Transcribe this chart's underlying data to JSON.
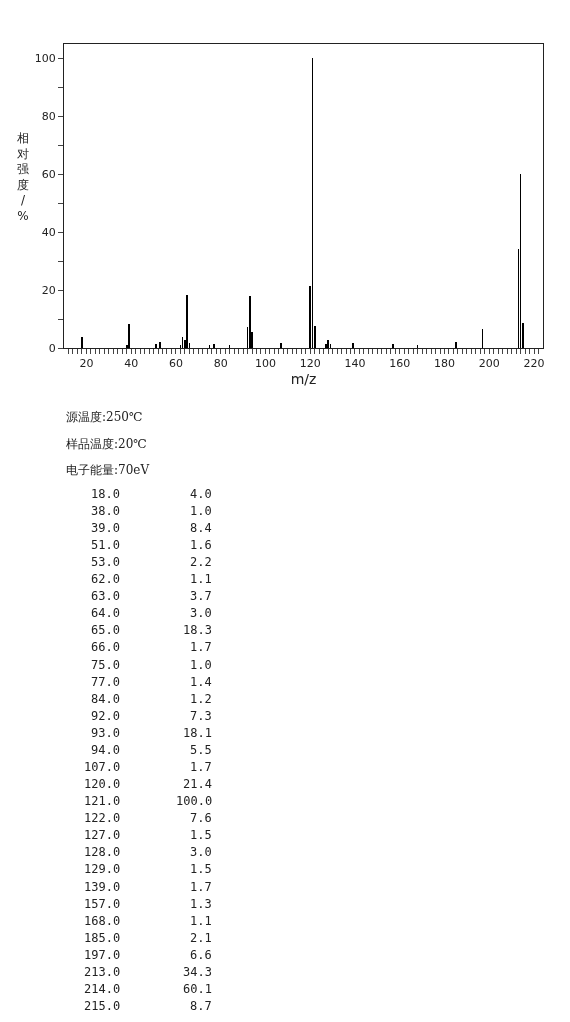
{
  "chart_data": {
    "type": "bar",
    "xlabel": "m/z",
    "ylabel": "相对强度/%",
    "x": [
      18.0,
      38.0,
      39.0,
      51.0,
      53.0,
      62.0,
      63.0,
      64.0,
      65.0,
      66.0,
      75.0,
      77.0,
      84.0,
      92.0,
      93.0,
      94.0,
      107.0,
      120.0,
      121.0,
      122.0,
      127.0,
      128.0,
      129.0,
      139.0,
      157.0,
      168.0,
      185.0,
      197.0,
      213.0,
      214.0,
      215.0
    ],
    "values": [
      4.0,
      1.0,
      8.4,
      1.6,
      2.2,
      1.1,
      3.7,
      3.0,
      18.3,
      1.7,
      1.0,
      1.4,
      1.2,
      7.3,
      18.1,
      5.5,
      1.7,
      21.4,
      100.0,
      7.6,
      1.5,
      3.0,
      1.5,
      1.7,
      1.3,
      1.1,
      2.1,
      6.6,
      34.3,
      60.1,
      8.7
    ],
    "color": "#000000",
    "xlim": [
      10,
      224
    ],
    "ylim": [
      0,
      105
    ],
    "xticks": [
      {
        "value": 12,
        "label": null
      },
      {
        "value": 14,
        "label": null
      },
      {
        "value": 16,
        "label": null
      },
      {
        "value": 18,
        "label": null
      },
      20,
      {
        "value": 22,
        "label": null
      },
      {
        "value": 24,
        "label": null
      },
      {
        "value": 26,
        "label": null
      },
      {
        "value": 28,
        "label": null
      },
      {
        "value": 30,
        "label": null
      },
      {
        "value": 32,
        "label": null
      },
      {
        "value": 34,
        "label": null
      },
      {
        "value": 36,
        "label": null
      },
      {
        "value": 38,
        "label": null
      },
      40,
      {
        "value": 42,
        "label": null
      },
      {
        "value": 44,
        "label": null
      },
      {
        "value": 46,
        "label": null
      },
      {
        "value": 48,
        "label": null
      },
      {
        "value": 50,
        "label": null
      },
      {
        "value": 52,
        "label": null
      },
      {
        "value": 54,
        "label": null
      },
      {
        "value": 56,
        "label": null
      },
      {
        "value": 58,
        "label": null
      },
      60,
      {
        "value": 62,
        "label": null
      },
      {
        "value": 64,
        "label": null
      },
      {
        "value": 66,
        "label": null
      },
      {
        "value": 68,
        "label": null
      },
      {
        "value": 70,
        "label": null
      },
      {
        "value": 72,
        "label": null
      },
      {
        "value": 74,
        "label": null
      },
      {
        "value": 76,
        "label": null
      },
      {
        "value": 78,
        "label": null
      },
      80,
      {
        "value": 82,
        "label": null
      },
      {
        "value": 84,
        "label": null
      },
      {
        "value": 86,
        "label": null
      },
      {
        "value": 88,
        "label": null
      },
      {
        "value": 90,
        "label": null
      },
      {
        "value": 92,
        "label": null
      },
      {
        "value": 94,
        "label": null
      },
      {
        "value": 96,
        "label": null
      },
      {
        "value": 98,
        "label": null
      },
      100,
      {
        "value": 102,
        "label": null
      },
      {
        "value": 104,
        "label": null
      },
      {
        "value": 106,
        "label": null
      },
      {
        "value": 108,
        "label": null
      },
      {
        "value": 110,
        "label": null
      },
      {
        "value": 112,
        "label": null
      },
      {
        "value": 114,
        "label": null
      },
      {
        "value": 116,
        "label": null
      },
      {
        "value": 118,
        "label": null
      },
      120,
      {
        "value": 122,
        "label": null
      },
      {
        "value": 124,
        "label": null
      },
      {
        "value": 126,
        "label": null
      },
      {
        "value": 128,
        "label": null
      },
      {
        "value": 130,
        "label": null
      },
      {
        "value": 132,
        "label": null
      },
      {
        "value": 134,
        "label": null
      },
      {
        "value": 136,
        "label": null
      },
      {
        "value": 138,
        "label": null
      },
      140,
      {
        "value": 142,
        "label": null
      },
      {
        "value": 144,
        "label": null
      },
      {
        "value": 146,
        "label": null
      },
      {
        "value": 148,
        "label": null
      },
      {
        "value": 150,
        "label": null
      },
      {
        "value": 152,
        "label": null
      },
      {
        "value": 154,
        "label": null
      },
      {
        "value": 156,
        "label": null
      },
      {
        "value": 158,
        "label": null
      },
      160,
      {
        "value": 162,
        "label": null
      },
      {
        "value": 164,
        "label": null
      },
      {
        "value": 166,
        "label": null
      },
      {
        "value": 168,
        "label": null
      },
      {
        "value": 170,
        "label": null
      },
      {
        "value": 172,
        "label": null
      },
      {
        "value": 174,
        "label": null
      },
      {
        "value": 176,
        "label": null
      },
      {
        "value": 178,
        "label": null
      },
      180,
      {
        "value": 182,
        "label": null
      },
      {
        "value": 184,
        "label": null
      },
      {
        "value": 186,
        "label": null
      },
      {
        "value": 188,
        "label": null
      },
      {
        "value": 190,
        "label": null
      },
      {
        "value": 192,
        "label": null
      },
      {
        "value": 194,
        "label": null
      },
      {
        "value": 196,
        "label": null
      },
      {
        "value": 198,
        "label": null
      },
      200,
      {
        "value": 202,
        "label": null
      },
      {
        "value": 204,
        "label": null
      },
      {
        "value": 206,
        "label": null
      },
      {
        "value": 208,
        "label": null
      },
      {
        "value": 210,
        "label": null
      },
      {
        "value": 212,
        "label": null
      },
      {
        "value": 214,
        "label": null
      },
      {
        "value": 216,
        "label": null
      },
      {
        "value": 218,
        "label": null
      },
      220,
      {
        "value": 222,
        "label": null
      }
    ],
    "yticks": [
      0,
      {
        "value": 10,
        "label": null
      },
      20,
      {
        "value": 30,
        "label": null
      },
      40,
      {
        "value": 50,
        "label": null
      },
      60,
      {
        "value": 70,
        "label": null
      },
      80,
      {
        "value": 90,
        "label": null
      },
      100
    ],
    "annotations": [
      "源温度:250℃",
      "样品温度:20℃",
      "电子能量:70eV",
      "18.0",
      "4.0",
      "38.0",
      "1.0",
      "39.0",
      "8.4",
      "51.0",
      "1.6",
      "53.0",
      "2.2",
      "62.0",
      "1.1",
      "63.0",
      "3.7",
      "64.0",
      "3.0",
      "65.0",
      "18.3",
      "66.0",
      "1.7",
      "75.0",
      "1.0",
      "77.0",
      "1.4",
      "84.0",
      "1.2",
      "92.0",
      "7.3",
      "93.0",
      "18.1",
      "94.0",
      "5.5",
      "107.0",
      "1.7",
      "120.0",
      "21.4",
      "121.0",
      "100.0",
      "122.0",
      "7.6",
      "127.0",
      "1.5",
      "128.0",
      "3.0",
      "129.0",
      "1.5",
      "139.0",
      "1.7",
      "157.0",
      "1.3",
      "168.0",
      "1.1",
      "185.0",
      "2.1",
      "197.0",
      "6.6",
      "213.0",
      "34.3",
      "214.0",
      "60.1",
      "215.0",
      "8.7"
    ]
  }
}
